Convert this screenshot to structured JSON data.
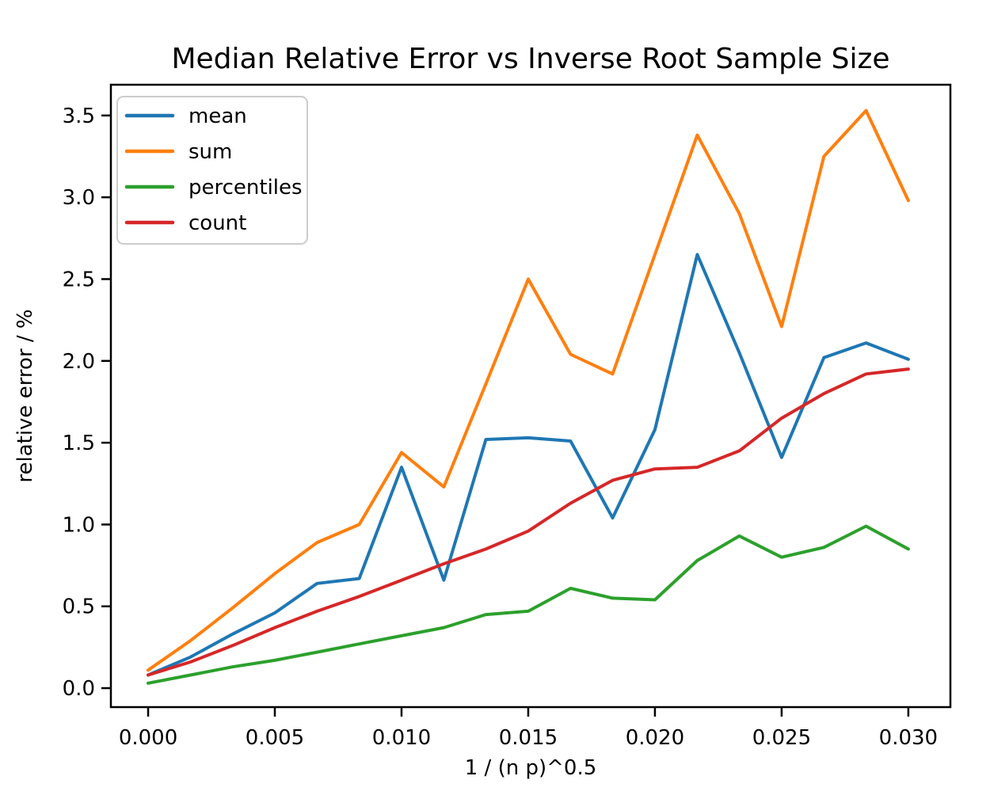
{
  "figure": {
    "background": "#ffffff",
    "spine_color": "#000000",
    "legend_border_color": "#cccccc"
  },
  "chart_data": {
    "type": "line",
    "title": "Median Relative Error vs Inverse Root Sample Size",
    "xlabel": "1 / (n p)^0.5",
    "ylabel": "relative error / %",
    "grid": false,
    "legend_position": "upper left",
    "x_ticks": [
      0.0,
      0.005,
      0.01,
      0.015,
      0.02,
      0.025,
      0.03
    ],
    "x_tick_labels": [
      "0.000",
      "0.005",
      "0.010",
      "0.015",
      "0.020",
      "0.025",
      "0.030"
    ],
    "y_ticks": [
      0.0,
      0.5,
      1.0,
      1.5,
      2.0,
      2.5,
      3.0,
      3.5
    ],
    "y_tick_labels": [
      "0.0",
      "0.5",
      "1.0",
      "1.5",
      "2.0",
      "2.5",
      "3.0",
      "3.5"
    ],
    "xlim": [
      -0.00147,
      0.03166
    ],
    "ylim": [
      -0.116,
      3.688
    ],
    "x": [
      0,
      0.00167,
      0.00333,
      0.005,
      0.00667,
      0.00833,
      0.01,
      0.01167,
      0.01333,
      0.015,
      0.01667,
      0.01833,
      0.02,
      0.02167,
      0.02333,
      0.025,
      0.02667,
      0.02833,
      0.03
    ],
    "series": [
      {
        "name": "mean",
        "color": "#1f77b4",
        "values": [
          0.08,
          0.19,
          0.33,
          0.46,
          0.64,
          0.67,
          1.35,
          0.66,
          1.52,
          1.53,
          1.51,
          1.04,
          1.58,
          2.65,
          2.05,
          1.41,
          2.02,
          2.11,
          2.01
        ]
      },
      {
        "name": "sum",
        "color": "#ff7f0e",
        "values": [
          0.11,
          0.29,
          0.49,
          0.7,
          0.89,
          1.0,
          1.44,
          1.23,
          1.86,
          2.5,
          2.04,
          1.92,
          2.65,
          3.38,
          2.9,
          2.21,
          3.25,
          3.53,
          2.98
        ]
      },
      {
        "name": "percentiles",
        "color": "#2ca02c",
        "values": [
          0.03,
          0.08,
          0.13,
          0.17,
          0.22,
          0.27,
          0.32,
          0.37,
          0.45,
          0.47,
          0.61,
          0.55,
          0.54,
          0.78,
          0.93,
          0.8,
          0.86,
          0.99,
          0.85
        ]
      },
      {
        "name": "count",
        "color": "#d62728",
        "values": [
          0.08,
          0.16,
          0.26,
          0.37,
          0.47,
          0.56,
          0.66,
          0.76,
          0.85,
          0.96,
          1.13,
          1.27,
          1.34,
          1.35,
          1.45,
          1.65,
          1.8,
          1.92,
          1.95
        ]
      }
    ]
  }
}
